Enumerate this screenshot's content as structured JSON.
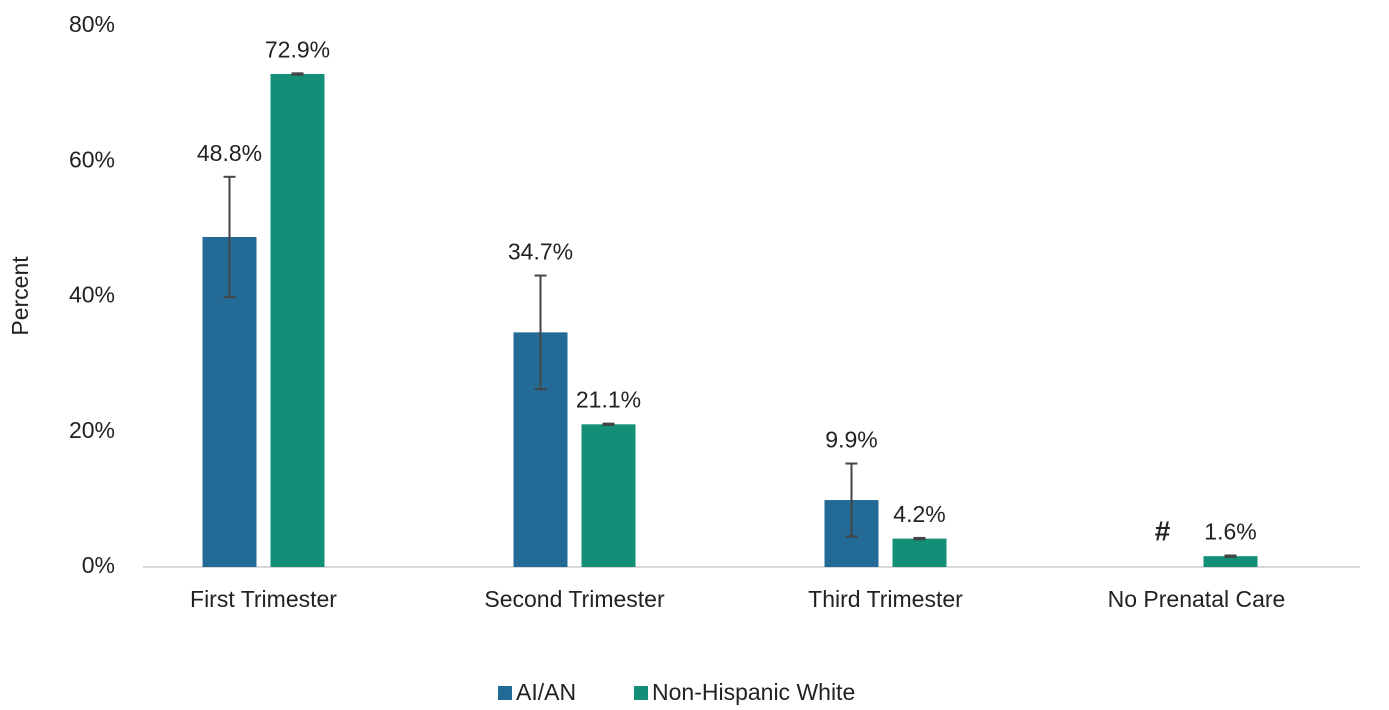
{
  "chart_data": {
    "type": "bar",
    "y_label": "Percent",
    "categories": [
      "First Trimester",
      "Second Trimester",
      "Third Trimester",
      "No Prenatal Care"
    ],
    "series": [
      {
        "name": "AI/AN",
        "color": "#236b96",
        "values": [
          48.8,
          34.7,
          9.9,
          null
        ],
        "errors": [
          8.9,
          8.4,
          5.4,
          null
        ],
        "value_labels": [
          "48.8%",
          "34.7%",
          "9.9%",
          "#"
        ]
      },
      {
        "name": "Non-Hispanic White",
        "color": "#128f76",
        "values": [
          72.9,
          21.1,
          4.2,
          1.6
        ],
        "errors": [
          0.1,
          0.1,
          0.1,
          0.1
        ],
        "value_labels": [
          "72.9%",
          "21.1%",
          "4.2%",
          "1.6%"
        ]
      }
    ],
    "ylim": [
      0,
      80
    ],
    "yticks": [
      {
        "value": 0,
        "label": "0%"
      },
      {
        "value": 20,
        "label": "20%"
      },
      {
        "value": 40,
        "label": "40%"
      },
      {
        "value": 60,
        "label": "60%"
      },
      {
        "value": 80,
        "label": "80%"
      }
    ],
    "grid": false,
    "legend": "bottom"
  }
}
